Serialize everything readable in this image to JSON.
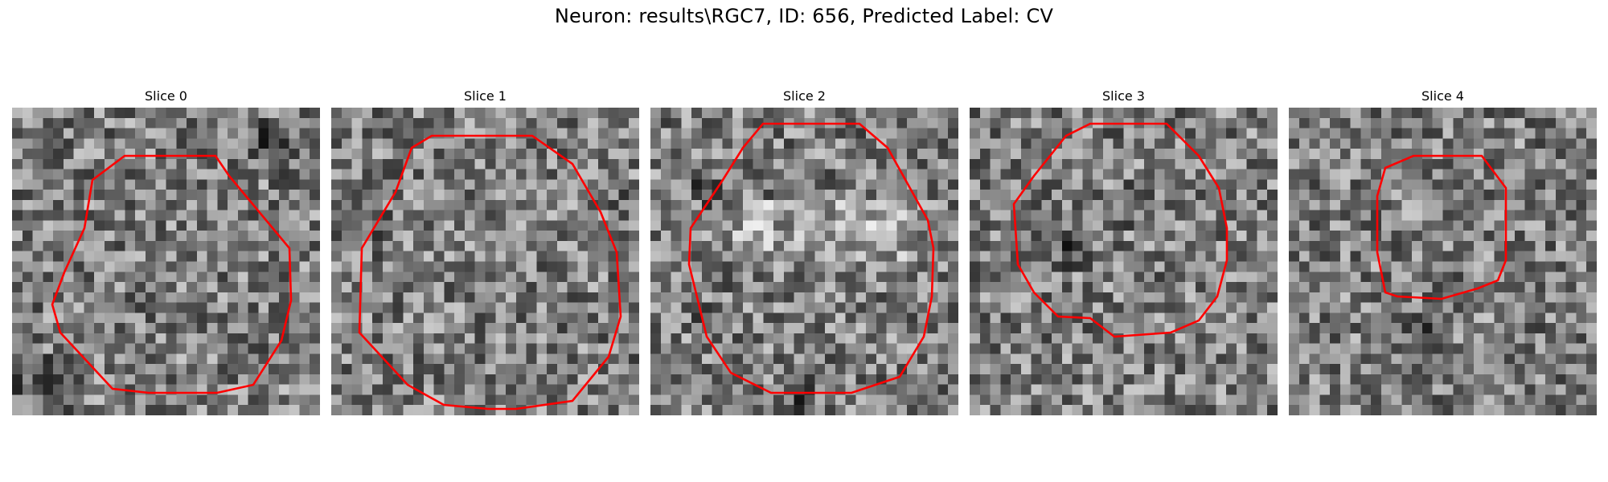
{
  "figure": {
    "title": "Neuron: results\\RGC7, ID: 656, Predicted Label: CV",
    "contour_color": "#ff0000"
  },
  "slices": [
    {
      "title": "Slice 0"
    },
    {
      "title": "Slice 1"
    },
    {
      "title": "Slice 2"
    },
    {
      "title": "Slice 3"
    },
    {
      "title": "Slice 4"
    }
  ]
}
